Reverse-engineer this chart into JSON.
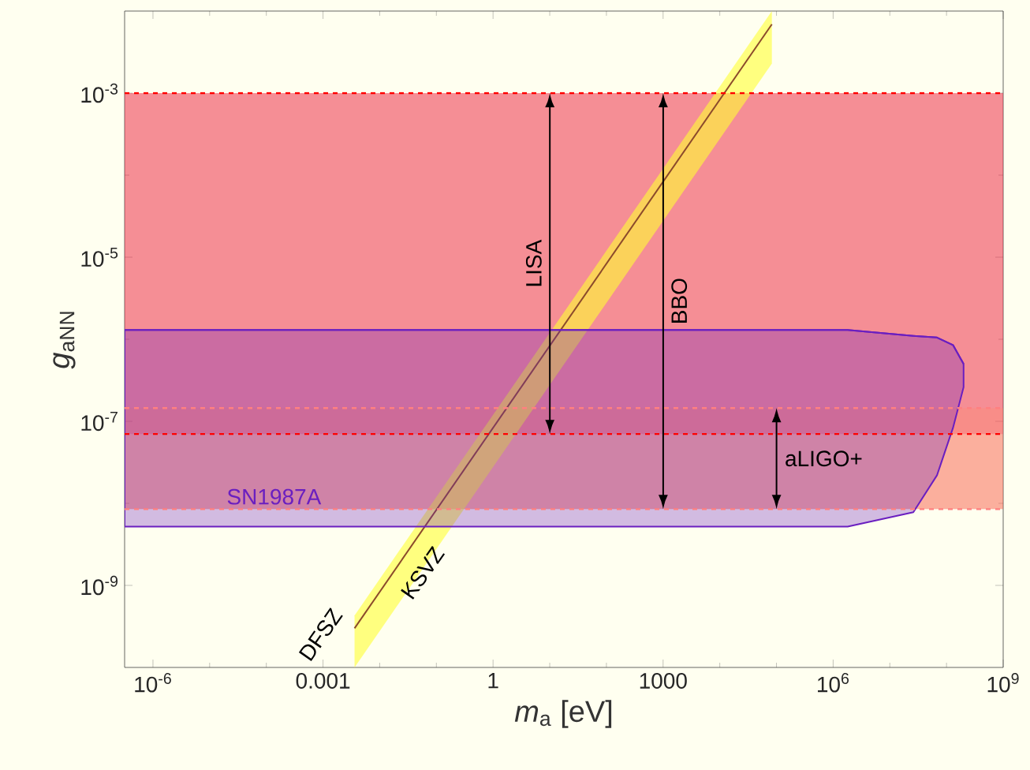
{
  "chart_data": {
    "type": "line",
    "xlabel": "*m*$_{a}$ [eV]",
    "ylabel": "*g*$_{aNN}$",
    "log": "xy",
    "grid": false,
    "xlim": [
      3.16e-07,
      1000000000.0
    ],
    "ylim": [
      1e-10,
      0.01
    ],
    "xticks": [
      {
        "value": 1e-06,
        "label": "10$^{-6}$"
      },
      {
        "value": 0.001,
        "label": "0.001"
      },
      {
        "value": 1,
        "label": "1"
      },
      {
        "value": 1000,
        "label": "1000"
      },
      {
        "value": 1000000.0,
        "label": "10$^{6}$"
      },
      {
        "value": 1000000000.0,
        "label": "10$^{9}$"
      }
    ],
    "yticks": [
      {
        "value": 1e-09,
        "label": "10$^{-9}$"
      },
      {
        "value": 1e-07,
        "label": "10$^{-7}$"
      },
      {
        "value": 1e-05,
        "label": "10$^{-5}$"
      },
      {
        "value": 0.001,
        "label": "10$^{-3}$"
      }
    ],
    "bands": [
      {
        "axis": "y",
        "from": 7e-08,
        "to": 0.001,
        "label": "LISA",
        "color": "#e8175d"
      },
      {
        "axis": "y",
        "from": 8.5e-09,
        "to": 0.001,
        "label": "BBO",
        "color": "#ee2a2a"
      },
      {
        "axis": "y",
        "from": 8.5e-09,
        "to": 1.45e-07,
        "label": "aLIGO+",
        "color": "#ff8a6a"
      }
    ],
    "ref_lines": [
      {
        "axis": "y",
        "value": 0.001,
        "color": "#ff0000",
        "line_style": "dashed"
      },
      {
        "axis": "y",
        "value": 7e-08,
        "color": "#ff0000",
        "line_style": "dashed"
      },
      {
        "axis": "y",
        "value": 1.45e-07,
        "color": "#ff8080",
        "line_style": "dashed"
      },
      {
        "axis": "y",
        "value": 8.5e-09,
        "color": "#ff8080",
        "line_style": "dashed"
      }
    ],
    "series": [
      {
        "type": "line",
        "color": "#8b4a2b",
        "x": [
          0.0036,
          83000.0
        ],
        "values": [
          3e-10,
          0.0069
        ],
        "lower": [
          1e-10,
          0.0023
        ],
        "upper": [
          4.3e-10,
          0.01
        ]
      },
      {
        "name": "SN1987A",
        "color": "#6a1fc0",
        "x": [
          3.16e-07,
          1800000.0,
          26000000.0,
          68000000.0,
          130000000.0,
          200000000.0
        ],
        "values": [
          1.3e-06,
          1.3e-06,
          1.1e-06,
          1.05e-06,
          8.5e-07,
          5e-07
        ],
        "upper": [
          1.3e-06,
          1.3e-06,
          1.1e-06,
          1.05e-06,
          8.5e-07,
          5e-07
        ],
        "lower": [
          5.2e-09,
          5.2e-09,
          7.8e-09,
          2.2e-08,
          8.3e-08,
          2.6e-07
        ]
      }
    ],
    "annotations": [
      "DFSZ",
      "KSVZ"
    ]
  }
}
